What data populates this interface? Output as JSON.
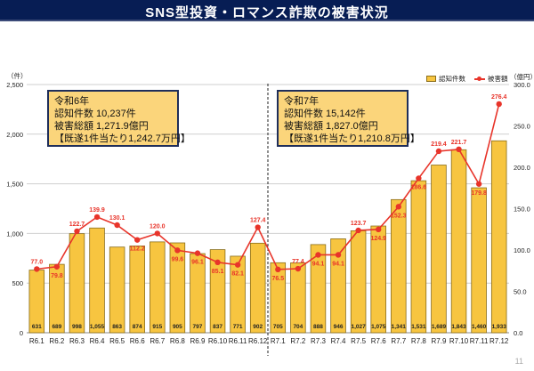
{
  "page": {
    "title": "SNS型投資・ロマンス詐欺の被害状況",
    "page_number": "11"
  },
  "info_boxes": [
    {
      "year": "令和6年",
      "count_line": "認知件数  10,237件",
      "amount_line": "被害総額  1,271.9億円",
      "per_case_line": "【既遂1件当たり1,242.7万円】"
    },
    {
      "year": "令和7年",
      "count_line": "認知件数  15,142件",
      "amount_line": "被害総額  1,827.0億円",
      "per_case_line": "【既遂1件当たり1,210.8万円】"
    }
  ],
  "legend": {
    "bar_label": "認知件数",
    "line_label": "被害額"
  },
  "colors": {
    "title_bg": "#071d54",
    "bar": "#f7c540",
    "bar_border": "#8a6d1a",
    "line": "#e8342a",
    "box_bg": "#fbd57b"
  },
  "chart_data": {
    "type": "bar+line",
    "title": "SNS型投資・ロマンス詐欺の被害状況",
    "categories": [
      "R6.1",
      "R6.2",
      "R6.3",
      "R6.4",
      "R6.5",
      "R6.6",
      "R6.7",
      "R6.8",
      "R6.9",
      "R6.10",
      "R6.11",
      "R6.12",
      "R7.1",
      "R7.2",
      "R7.3",
      "R7.4",
      "R7.5",
      "R7.6",
      "R7.7",
      "R7.8",
      "R7.9",
      "R7.10",
      "R7.11",
      "R7.12"
    ],
    "series": [
      {
        "name": "認知件数",
        "type": "bar",
        "axis": "left",
        "values": [
          631,
          689,
          998,
          1055,
          863,
          874,
          915,
          905,
          797,
          837,
          771,
          902,
          705,
          704,
          888,
          946,
          1027,
          1075,
          1341,
          1531,
          1689,
          1843,
          1460,
          1933
        ],
        "labels": [
          "631",
          "689",
          "998",
          "1,055",
          "863",
          "874",
          "915",
          "905",
          "797",
          "837",
          "771",
          "902",
          "705",
          "704",
          "888",
          "946",
          "1,027",
          "1,075",
          "1,341",
          "1,531",
          "1,689",
          "1,843",
          "1,460",
          "1,933"
        ]
      },
      {
        "name": "被害額",
        "type": "line",
        "axis": "right",
        "values": [
          77.0,
          79.8,
          122.7,
          139.9,
          130.1,
          112.2,
          120.0,
          99.6,
          96.1,
          85.1,
          82.1,
          127.4,
          76.5,
          77.4,
          94.1,
          94.1,
          123.7,
          124.9,
          152.3,
          186.6,
          219.4,
          221.7,
          179.8,
          276.4
        ],
        "labels": [
          "77.0",
          "79.8",
          "122.7",
          "139.9",
          "130.1",
          "112.2",
          "120.0",
          "99.6",
          "96.1",
          "85.1",
          "82.1",
          "127.4",
          "76.5",
          "77.4",
          "94.1",
          "94.1",
          "123.7",
          "124.9",
          "152.3",
          "186.6",
          "219.4",
          "221.7",
          "179.8",
          "276.4"
        ],
        "label_pos": [
          "above",
          "below",
          "above",
          "above",
          "above",
          "below",
          "above",
          "below",
          "below",
          "below",
          "below",
          "above",
          "below",
          "above",
          "below",
          "below",
          "above",
          "below",
          "below",
          "below",
          "above",
          "above",
          "below",
          "above"
        ]
      }
    ],
    "y_left": {
      "label": "（件）",
      "range": [
        0,
        2500
      ],
      "ticks": [
        "0",
        "500",
        "1,000",
        "1,500",
        "2,000",
        "2,500"
      ]
    },
    "y_right": {
      "label": "（億円）",
      "range": [
        0,
        300
      ],
      "ticks": [
        "0.0",
        "50.0",
        "100.0",
        "150.0",
        "200.0",
        "250.0",
        "300.0"
      ]
    },
    "grid": true,
    "legend_position": "top-right",
    "divider_after_category": "R6.12"
  }
}
